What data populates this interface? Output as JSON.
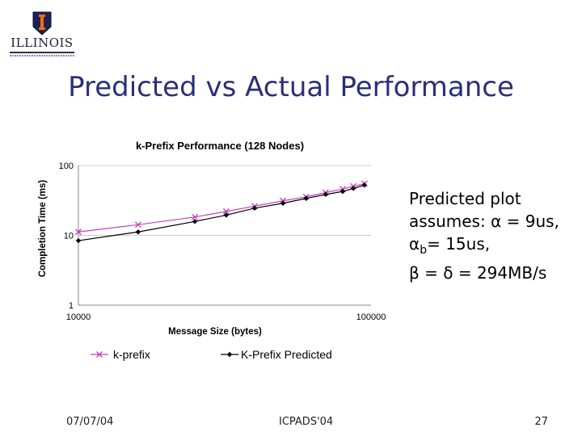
{
  "slide": {
    "logo_text": "ILLINOIS",
    "title": "Predicted vs Actual Performance",
    "note": {
      "line1": "Predicted plot",
      "line2": "assumes: α = 9us,",
      "line3_prefix": "α",
      "line3_sub": "b",
      "line3_suffix": "= 15us,",
      "line4": "β = δ = 294MB/s"
    },
    "footer": {
      "date": "07/07/04",
      "conference": "ICPADS'04",
      "page": "27"
    }
  },
  "colors": {
    "title": "#2a2f7a",
    "series_kprefix": "#c040c0",
    "series_predicted": "#000000",
    "grid": "#cccccc"
  },
  "chart_data": {
    "type": "line",
    "title": "k-Prefix Performance (128 Nodes)",
    "xlabel": "Message Size (bytes)",
    "ylabel": "Completion Time (ms)",
    "x_scale": "log",
    "y_scale": "log",
    "xlim": [
      10000,
      100000
    ],
    "ylim": [
      1,
      100
    ],
    "x_ticks": [
      "10000",
      "100000"
    ],
    "y_ticks": [
      "1",
      "10",
      "100"
    ],
    "grid": true,
    "legend_position": "bottom",
    "x": [
      10000,
      16000,
      25000,
      32000,
      40000,
      50000,
      60000,
      70000,
      80000,
      87000,
      95000
    ],
    "series": [
      {
        "name": "k-prefix",
        "marker": "x",
        "values": [
          11.2,
          14.2,
          18.3,
          22.0,
          26.2,
          31.2,
          35.6,
          41.0,
          46.0,
          50.5,
          55.0
        ]
      },
      {
        "name": "K-Prefix Predicted",
        "marker": "diamond",
        "values": [
          8.4,
          11.2,
          15.8,
          19.5,
          24.5,
          28.8,
          33.8,
          38.5,
          42.5,
          47.0,
          52.5
        ]
      }
    ]
  }
}
